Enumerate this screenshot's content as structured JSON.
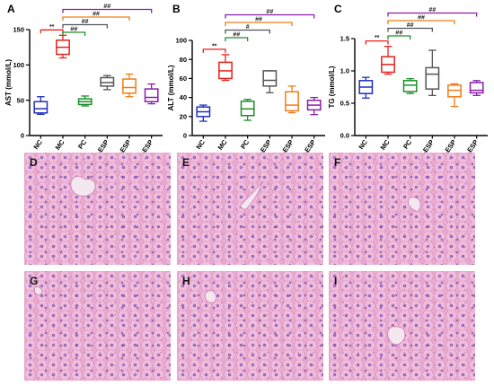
{
  "colors": {
    "NC": "#1f2fbf",
    "MC": "#e8201c",
    "PC": "#1d8f2a",
    "L-ESP": "#555555",
    "M-ESP": "#f07d15",
    "H-ESP": "#8b1ea8",
    "tissue_bg": "#e9a9cf",
    "tissue_cell": "#f1c0de",
    "tissue_nucleus": "#8a5fb5",
    "vessel": "#f4e8f0"
  },
  "chart_data": [
    {
      "type": "box",
      "panel": "A",
      "ylabel": "AST (mmol/L)",
      "ylim": [
        0,
        150
      ],
      "yticks": [
        0,
        50,
        100,
        150
      ],
      "categories": [
        "NC",
        "MC",
        "PC",
        "L-ESP",
        "M-ESP",
        "H-ESP"
      ],
      "boxes": [
        {
          "min": 30,
          "q1": 32,
          "median": 38,
          "q3": 48,
          "max": 55
        },
        {
          "min": 110,
          "q1": 115,
          "median": 125,
          "q3": 135,
          "max": 142
        },
        {
          "min": 42,
          "q1": 44,
          "median": 48,
          "q3": 52,
          "max": 56
        },
        {
          "min": 65,
          "q1": 70,
          "median": 75,
          "q3": 82,
          "max": 85
        },
        {
          "min": 55,
          "q1": 60,
          "median": 68,
          "q3": 80,
          "max": 87
        },
        {
          "min": 45,
          "q1": 48,
          "median": 54,
          "q3": 66,
          "max": 73
        }
      ],
      "significance": [
        {
          "from": "MC",
          "to": "NC",
          "label": "**",
          "color": "#e8201c"
        },
        {
          "from": "MC",
          "to": "PC",
          "label": "##",
          "color": "#1d8f2a"
        },
        {
          "from": "MC",
          "to": "L-ESP",
          "label": "##",
          "color": "#555555"
        },
        {
          "from": "MC",
          "to": "M-ESP",
          "label": "##",
          "color": "#f07d15"
        },
        {
          "from": "MC",
          "to": "H-ESP",
          "label": "##",
          "color": "#8b1ea8"
        }
      ]
    },
    {
      "type": "box",
      "panel": "B",
      "ylabel": "ALT (mmol/L)",
      "ylim": [
        0,
        100
      ],
      "yticks": [
        0,
        20,
        40,
        60,
        80,
        100
      ],
      "categories": [
        "NC",
        "MC",
        "PC",
        "L-ESP",
        "M-ESP",
        "H-ESP"
      ],
      "boxes": [
        {
          "min": 15,
          "q1": 20,
          "median": 25,
          "q3": 30,
          "max": 32
        },
        {
          "min": 58,
          "q1": 60,
          "median": 68,
          "q3": 77,
          "max": 85
        },
        {
          "min": 16,
          "q1": 21,
          "median": 28,
          "q3": 36,
          "max": 38
        },
        {
          "min": 45,
          "q1": 52,
          "median": 58,
          "q3": 68,
          "max": 68
        },
        {
          "min": 24,
          "q1": 26,
          "median": 32,
          "q3": 46,
          "max": 52
        },
        {
          "min": 22,
          "q1": 27,
          "median": 32,
          "q3": 37,
          "max": 40
        }
      ],
      "significance": [
        {
          "from": "MC",
          "to": "NC",
          "label": "**",
          "color": "#e8201c"
        },
        {
          "from": "MC",
          "to": "PC",
          "label": "##",
          "color": "#1d8f2a"
        },
        {
          "from": "MC",
          "to": "L-ESP",
          "label": "#",
          "color": "#555555"
        },
        {
          "from": "MC",
          "to": "M-ESP",
          "label": "##",
          "color": "#f07d15"
        },
        {
          "from": "MC",
          "to": "H-ESP",
          "label": "##",
          "color": "#8b1ea8"
        }
      ]
    },
    {
      "type": "box",
      "panel": "C",
      "ylabel": "TG (mmol/L)",
      "ylim": [
        0,
        1.5
      ],
      "yticks": [
        0.0,
        0.5,
        1.0,
        1.5
      ],
      "tick_labels": [
        "0.0",
        "0.5",
        "1.0",
        "1.5"
      ],
      "categories": [
        "NC",
        "MC",
        "PC",
        "L-ESP",
        "M-ESP",
        "H-ESP"
      ],
      "boxes": [
        {
          "min": 0.58,
          "q1": 0.65,
          "median": 0.75,
          "q3": 0.85,
          "max": 0.9
        },
        {
          "min": 0.95,
          "q1": 0.98,
          "median": 1.1,
          "q3": 1.22,
          "max": 1.38
        },
        {
          "min": 0.65,
          "q1": 0.68,
          "median": 0.78,
          "q3": 0.85,
          "max": 0.88
        },
        {
          "min": 0.62,
          "q1": 0.72,
          "median": 0.95,
          "q3": 1.05,
          "max": 1.32
        },
        {
          "min": 0.45,
          "q1": 0.6,
          "median": 0.7,
          "q3": 0.78,
          "max": 0.8
        },
        {
          "min": 0.62,
          "q1": 0.66,
          "median": 0.7,
          "q3": 0.82,
          "max": 0.85
        }
      ],
      "significance": [
        {
          "from": "MC",
          "to": "NC",
          "label": "**",
          "color": "#e8201c"
        },
        {
          "from": "MC",
          "to": "PC",
          "label": "##",
          "color": "#1d8f2a"
        },
        {
          "from": "MC",
          "to": "L-ESP",
          "label": "##",
          "color": "#555555"
        },
        {
          "from": "MC",
          "to": "M-ESP",
          "label": "##",
          "color": "#f07d15"
        },
        {
          "from": "MC",
          "to": "H-ESP",
          "label": "##",
          "color": "#8b1ea8"
        }
      ]
    }
  ],
  "histology": {
    "panels": [
      "D",
      "E",
      "F",
      "G",
      "H",
      "I"
    ]
  }
}
